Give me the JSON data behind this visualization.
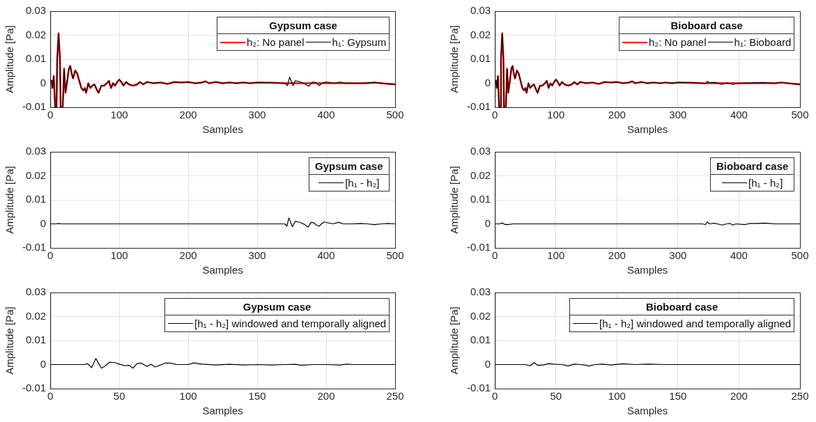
{
  "chart_data": [
    {
      "type": "line",
      "legend_title": "Gypsum case",
      "xlabel": "Samples",
      "ylabel": "Amplitude [Pa]",
      "xlim": [
        0,
        500
      ],
      "xticks": [
        0,
        100,
        200,
        300,
        400,
        500
      ],
      "ylim": [
        -0.01,
        0.03
      ],
      "yticks": [
        -0.01,
        0,
        0.01,
        0.02,
        0.03
      ],
      "grid": true,
      "legend": "top right",
      "series": [
        {
          "name": "h₂: No panel",
          "color": "#ff0000",
          "x": [
            0,
            2,
            3,
            5,
            7,
            9,
            10,
            12,
            14,
            15,
            18,
            20,
            22,
            24,
            27,
            29,
            31,
            33,
            36,
            39,
            42,
            45,
            48,
            50,
            52,
            55,
            58,
            61,
            64,
            68,
            70,
            74,
            78,
            82,
            85,
            88,
            91,
            94,
            97,
            100,
            103,
            106,
            110,
            114,
            120,
            126,
            130,
            135,
            140,
            150,
            160,
            170,
            180,
            190,
            200,
            210,
            220,
            225,
            230,
            240,
            250,
            260,
            270,
            280,
            290,
            300,
            320,
            340,
            360,
            380,
            400,
            420,
            440,
            460,
            470,
            480,
            500
          ],
          "values": [
            0.001,
            0.001,
            -0.002,
            0.003,
            -0.01,
            -0.01,
            0.01,
            0.0208,
            0.01,
            -0.01,
            -0.01,
            0.006,
            -0.004,
            0,
            0.006,
            0.0072,
            0.004,
            0.002,
            0.0053,
            0.004,
            0.001,
            -0.002,
            -0.003,
            -0.002,
            -0.004,
            0,
            -0.002,
            -0.001,
            -0.0005,
            -0.003,
            -0.004,
            -0.001,
            -0.001,
            0,
            0.001,
            -0.002,
            0,
            -0.001,
            0.0005,
            0.0015,
            0.0005,
            -0.001,
            0.0005,
            -0.0005,
            -0.001,
            -0.0005,
            0.0005,
            -0.0005,
            0.0005,
            0,
            0.0003,
            -0.0003,
            0.0005,
            0.0003,
            0.0005,
            0,
            0.0003,
            0.0008,
            0,
            0.0005,
            0,
            0.0003,
            0,
            0.0003,
            0,
            0.0003,
            0.0002,
            0,
            0,
            0,
            0,
            0,
            0,
            0,
            0.0003,
            0,
            -0.0005
          ]
        },
        {
          "name": "h₁: Gypsum",
          "color": "#000000",
          "x": [
            0,
            2,
            3,
            5,
            7,
            9,
            10,
            12,
            14,
            15,
            18,
            20,
            22,
            24,
            27,
            29,
            31,
            33,
            36,
            39,
            42,
            45,
            48,
            50,
            52,
            55,
            58,
            61,
            64,
            68,
            70,
            74,
            78,
            82,
            85,
            88,
            91,
            94,
            97,
            100,
            103,
            106,
            110,
            114,
            120,
            126,
            130,
            135,
            140,
            150,
            160,
            170,
            180,
            190,
            200,
            210,
            220,
            225,
            230,
            240,
            250,
            260,
            270,
            280,
            290,
            300,
            320,
            340,
            344,
            347,
            350,
            352,
            355,
            360,
            365,
            370,
            375,
            380,
            385,
            390,
            395,
            400,
            405,
            410,
            420,
            430,
            450,
            470,
            480,
            500
          ],
          "values": [
            0.001,
            0.001,
            -0.002,
            0.003,
            -0.01,
            -0.01,
            0.01,
            0.0208,
            0.01,
            -0.01,
            -0.01,
            0.006,
            -0.004,
            0,
            0.006,
            0.0072,
            0.004,
            0.002,
            0.0053,
            0.004,
            0.001,
            -0.002,
            -0.003,
            -0.002,
            -0.004,
            0,
            -0.002,
            -0.001,
            -0.0005,
            -0.003,
            -0.004,
            -0.001,
            -0.001,
            0,
            0.001,
            -0.002,
            0,
            -0.001,
            0.0005,
            0.0015,
            0.0005,
            -0.001,
            0.0005,
            -0.0005,
            -0.001,
            -0.0005,
            0.0005,
            -0.0005,
            0.0005,
            0,
            0.0003,
            -0.0003,
            0.0005,
            0.0003,
            0.0005,
            0,
            0.0003,
            0.0008,
            0,
            0.0005,
            0,
            0.0003,
            0,
            0.0003,
            0,
            0.0003,
            0.0002,
            0,
            -0.001,
            0.0025,
            0.0005,
            -0.001,
            0.001,
            0.0008,
            0.0003,
            -0.0005,
            -0.0012,
            0.0005,
            0.0003,
            -0.001,
            0.0002,
            0.0005,
            0.0003,
            0,
            0.0005,
            0,
            0,
            0.0003,
            0,
            -0.0005
          ]
        }
      ]
    },
    {
      "type": "line",
      "legend_title": "Bioboard case",
      "xlabel": "Samples",
      "ylabel": "Amplitude [Pa]",
      "xlim": [
        0,
        500
      ],
      "xticks": [
        0,
        100,
        200,
        300,
        400,
        500
      ],
      "ylim": [
        -0.01,
        0.03
      ],
      "yticks": [
        -0.01,
        0,
        0.01,
        0.02,
        0.03
      ],
      "grid": true,
      "legend": "top right",
      "series": [
        {
          "name": "h₂: No panel",
          "color": "#ff0000",
          "x": [
            0,
            2,
            3,
            5,
            7,
            9,
            10,
            12,
            14,
            15,
            18,
            20,
            22,
            24,
            27,
            29,
            31,
            33,
            36,
            39,
            42,
            45,
            48,
            50,
            52,
            55,
            58,
            61,
            64,
            68,
            70,
            74,
            78,
            82,
            85,
            88,
            91,
            94,
            97,
            100,
            103,
            106,
            110,
            114,
            120,
            126,
            130,
            135,
            140,
            150,
            160,
            170,
            180,
            190,
            200,
            210,
            220,
            225,
            230,
            240,
            250,
            260,
            270,
            280,
            290,
            300,
            320,
            340,
            360,
            380,
            400,
            420,
            440,
            460,
            470,
            480,
            500
          ],
          "values": [
            0.001,
            0.001,
            -0.002,
            0.003,
            -0.01,
            -0.01,
            0.01,
            0.0208,
            0.01,
            -0.01,
            -0.01,
            0.006,
            -0.004,
            0,
            0.006,
            0.0072,
            0.004,
            0.002,
            0.0053,
            0.004,
            0.001,
            -0.002,
            -0.003,
            -0.002,
            -0.004,
            0,
            -0.002,
            -0.001,
            -0.0005,
            -0.003,
            -0.004,
            -0.001,
            -0.001,
            0,
            0.001,
            -0.002,
            0,
            -0.001,
            0.0005,
            0.0015,
            0.0005,
            -0.001,
            0.0005,
            -0.0005,
            -0.001,
            -0.0005,
            0.0005,
            -0.0005,
            0.0005,
            0,
            0.0003,
            -0.0003,
            0.0005,
            0.0003,
            0.0005,
            0,
            0.0003,
            0.0008,
            0,
            0.0005,
            0,
            0.0003,
            0,
            0.0003,
            0,
            0.0003,
            0.0002,
            0,
            0,
            0,
            0,
            0,
            0,
            0,
            0.0003,
            0,
            -0.0005
          ]
        },
        {
          "name": "h₁: Bioboard",
          "color": "#000000",
          "x": [
            0,
            2,
            3,
            5,
            7,
            9,
            10,
            12,
            14,
            15,
            18,
            20,
            22,
            24,
            27,
            29,
            31,
            33,
            36,
            39,
            42,
            45,
            48,
            50,
            52,
            55,
            58,
            61,
            64,
            68,
            70,
            74,
            78,
            82,
            85,
            88,
            91,
            94,
            97,
            100,
            103,
            106,
            110,
            114,
            120,
            126,
            130,
            135,
            140,
            150,
            160,
            170,
            180,
            190,
            200,
            210,
            220,
            225,
            230,
            240,
            250,
            260,
            270,
            280,
            290,
            300,
            320,
            340,
            345,
            348,
            352,
            360,
            372,
            380,
            390,
            400,
            420,
            440,
            460,
            470,
            480,
            500
          ],
          "values": [
            0.001,
            0.001,
            -0.002,
            0.003,
            -0.01,
            -0.01,
            0.01,
            0.0208,
            0.01,
            -0.01,
            -0.01,
            0.006,
            -0.004,
            0,
            0.006,
            0.0072,
            0.004,
            0.002,
            0.0053,
            0.004,
            0.001,
            -0.002,
            -0.003,
            -0.002,
            -0.004,
            0,
            -0.002,
            -0.001,
            -0.0005,
            -0.003,
            -0.004,
            -0.001,
            -0.001,
            0,
            0.001,
            -0.002,
            0,
            -0.001,
            0.0005,
            0.0015,
            0.0005,
            -0.001,
            0.0005,
            -0.0005,
            -0.001,
            -0.0005,
            0.0005,
            -0.0005,
            0.0005,
            0,
            0.0003,
            -0.0003,
            0.0005,
            0.0003,
            0.0005,
            0,
            0.0003,
            0.0008,
            0,
            0.0005,
            0,
            0.0003,
            0,
            0.0003,
            0,
            0.0003,
            0.0002,
            0,
            -0.0003,
            0.0008,
            0.0002,
            0.0004,
            -0.0005,
            0.0002,
            -0.0005,
            0,
            0.0002,
            0.0003,
            0,
            0.0003,
            0,
            -0.0005
          ]
        }
      ]
    },
    {
      "type": "line",
      "legend_title": "Gypsum case",
      "xlabel": "Samples",
      "ylabel": "Amplitude [Pa]",
      "xlim": [
        0,
        500
      ],
      "xticks": [
        0,
        100,
        200,
        300,
        400,
        500
      ],
      "ylim": [
        -0.01,
        0.03
      ],
      "yticks": [
        -0.01,
        0,
        0.01,
        0.02,
        0.03
      ],
      "grid": true,
      "legend": "top right",
      "series": [
        {
          "name": "[h₁ - h₂]",
          "color": "#000000",
          "x": [
            0,
            8,
            12,
            16,
            30,
            100,
            200,
            300,
            340,
            343,
            346,
            349,
            351,
            355,
            360,
            365,
            370,
            374,
            378,
            382,
            386,
            390,
            393,
            397,
            402,
            410,
            418,
            425,
            440,
            450,
            460,
            470,
            480,
            490,
            500
          ],
          "values": [
            0,
            0,
            0.0002,
            0,
            0,
            0,
            0,
            0,
            0,
            -0.001,
            0.0025,
            0.0003,
            -0.0012,
            0.001,
            0.0008,
            0.0003,
            -0.0005,
            -0.0013,
            0.0006,
            0.0005,
            -0.0005,
            -0.001,
            0,
            0.0008,
            0.0005,
            0,
            0.0007,
            0,
            0,
            0.0002,
            0,
            -0.0003,
            0,
            0.0002,
            0
          ]
        }
      ]
    },
    {
      "type": "line",
      "legend_title": "Bioboard case",
      "xlabel": "Samples",
      "ylabel": "Amplitude [Pa]",
      "xlim": [
        0,
        500
      ],
      "xticks": [
        0,
        100,
        200,
        300,
        400,
        500
      ],
      "ylim": [
        -0.01,
        0.03
      ],
      "yticks": [
        -0.01,
        0,
        0.01,
        0.02,
        0.03
      ],
      "grid": true,
      "legend": "top right",
      "series": [
        {
          "name": "[h₁ - h₂]",
          "color": "#000000",
          "x": [
            0,
            8,
            12,
            16,
            20,
            30,
            100,
            200,
            300,
            340,
            345,
            348,
            352,
            358,
            365,
            372,
            380,
            385,
            390,
            395,
            410,
            418,
            430,
            440,
            450,
            460,
            500
          ],
          "values": [
            0,
            0,
            0.0004,
            -0.0002,
            -0.0003,
            0,
            0,
            0,
            0,
            0,
            -0.0003,
            0.0008,
            0,
            0.0003,
            0,
            -0.0005,
            0,
            0.0002,
            -0.0005,
            0,
            -0.0003,
            0.0002,
            0.0002,
            0.0003,
            0.0002,
            0,
            0
          ]
        }
      ]
    },
    {
      "type": "line",
      "legend_title": "Gypsum case",
      "xlabel": "Samples",
      "ylabel": "Amplitude [Pa]",
      "xlim": [
        0,
        250
      ],
      "xticks": [
        0,
        50,
        100,
        150,
        200,
        250
      ],
      "ylim": [
        -0.01,
        0.03
      ],
      "yticks": [
        -0.01,
        0,
        0.01,
        0.02,
        0.03
      ],
      "grid": true,
      "legend": "top right",
      "series": [
        {
          "name": "[h₁ - h₂] windowed and temporally aligned",
          "color": "#000000",
          "x": [
            0,
            20,
            25,
            27,
            30,
            33,
            37,
            40,
            43,
            47,
            50,
            54,
            57,
            60,
            63,
            66,
            70,
            73,
            76,
            80,
            83,
            87,
            92,
            100,
            104,
            110,
            120,
            130,
            140,
            150,
            160,
            170,
            178,
            182,
            190,
            200,
            210,
            215,
            220,
            230,
            250
          ],
          "values": [
            0,
            0,
            0,
            0.0004,
            -0.0013,
            0.0025,
            -0.0015,
            -0.0005,
            0.001,
            0.0008,
            0.0002,
            -0.0005,
            -0.0003,
            -0.0015,
            0.0005,
            0.0006,
            -0.0008,
            0.0001,
            -0.001,
            -0.0002,
            0.0006,
            0.0006,
            0,
            0,
            0.0007,
            0.0002,
            -0.0002,
            0.0001,
            -0.0002,
            0,
            -0.0002,
            0,
            0.0001,
            -0.0003,
            0,
            0,
            -0.0002,
            0.0002,
            0,
            0,
            0
          ]
        }
      ]
    },
    {
      "type": "line",
      "legend_title": "Bioboard case",
      "xlabel": "Samples",
      "ylabel": "Amplitude [Pa]",
      "xlim": [
        0,
        250
      ],
      "xticks": [
        0,
        50,
        100,
        150,
        200,
        250
      ],
      "ylim": [
        -0.01,
        0.03
      ],
      "yticks": [
        -0.01,
        0,
        0.01,
        0.02,
        0.03
      ],
      "grid": true,
      "legend": "top right",
      "series": [
        {
          "name": "[h₁ - h₂]  windowed and temporally aligned",
          "color": "#000000",
          "x": [
            0,
            25,
            29,
            32,
            35,
            40,
            44,
            48,
            55,
            60,
            65,
            70,
            73,
            77,
            82,
            88,
            95,
            105,
            115,
            125,
            140,
            250
          ],
          "values": [
            0,
            0,
            -0.0005,
            0.0008,
            -0.0003,
            -0.0002,
            0.0004,
            0.0002,
            0,
            -0.0006,
            0.0002,
            0,
            -0.0002,
            -0.0006,
            0,
            0.0002,
            -0.0002,
            0.0003,
            0,
            0.0002,
            0,
            0
          ]
        }
      ]
    }
  ]
}
